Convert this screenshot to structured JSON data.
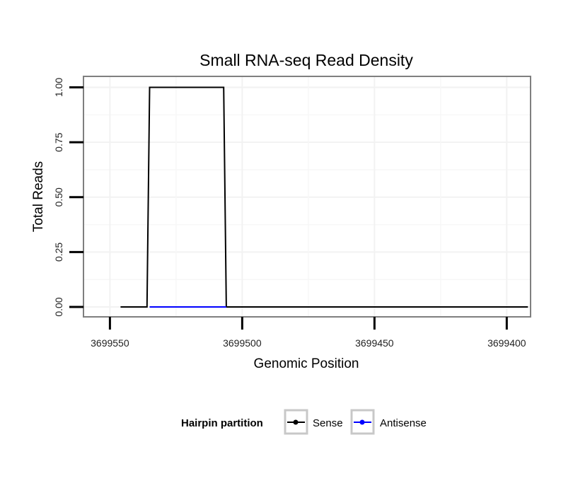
{
  "chart_data": {
    "type": "line",
    "title": "Small RNA-seq Read Density",
    "xlabel": "Genomic Position",
    "ylabel": "Total Reads",
    "x_reversed": true,
    "xlim": [
      3699391,
      3699560
    ],
    "ylim": [
      -0.045,
      1.05
    ],
    "x_ticks": [
      3699550,
      3699500,
      3699450,
      3699400
    ],
    "x_tick_labels": [
      "3699550",
      "3699500",
      "3699450",
      "3699400"
    ],
    "y_ticks": [
      0,
      0.25,
      0.5,
      0.75,
      1
    ],
    "y_tick_labels": [
      "0.00",
      "0.25",
      "0.50",
      "0.75",
      "1.00"
    ],
    "grid": true,
    "legend_title": "Hairpin partition",
    "legend_position": "bottom",
    "series": [
      {
        "name": "Sense",
        "color": "#000000",
        "x": [
          3699546,
          3699536,
          3699535,
          3699507,
          3699506,
          3699392
        ],
        "y": [
          0,
          0,
          1,
          1,
          0,
          0
        ]
      },
      {
        "name": "Antisense",
        "color": "#0000ff",
        "x": [
          3699535,
          3699506
        ],
        "y": [
          0,
          0
        ]
      }
    ]
  }
}
